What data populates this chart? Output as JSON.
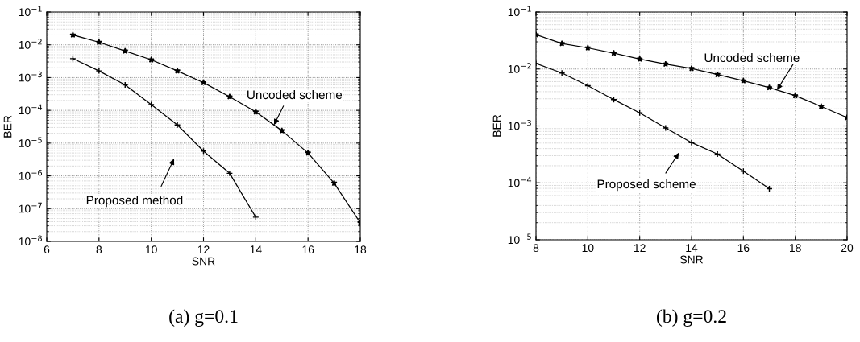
{
  "chart_data": [
    {
      "type": "line",
      "xlabel": "SNR",
      "ylabel": "BER",
      "log": true,
      "grid": true,
      "legend": false,
      "line_style": "solid",
      "xlim": [
        6,
        18
      ],
      "xticks": [
        6,
        8,
        10,
        12,
        14,
        16,
        18
      ],
      "ylim": [
        1e-08,
        0.1
      ],
      "yticks": [
        {
          "value": 1e-08,
          "label": "10$^{−8}$"
        },
        {
          "value": 1e-07,
          "label": "10$^{−7}$"
        },
        {
          "value": 1e-06,
          "label": "10$^{−6}$"
        },
        {
          "value": 1e-05,
          "label": "10$^{−5}$"
        },
        {
          "value": 0.0001,
          "label": "10$^{−4}$"
        },
        {
          "value": 0.001,
          "label": "10$^{−3}$"
        },
        {
          "value": 0.01,
          "label": "10$^{−2}$"
        },
        {
          "value": 0.1,
          "label": "10$^{−1}$"
        }
      ],
      "series": [
        {
          "color": "#000000",
          "marker": "star",
          "x": [
            7,
            8,
            9,
            10,
            11,
            12,
            13,
            14,
            15,
            16,
            17,
            18
          ],
          "values": [
            0.02,
            0.012,
            0.0065,
            0.0035,
            0.0016,
            0.0007,
            0.00026,
            9e-05,
            2.4e-05,
            5e-06,
            6e-07,
            3.7e-08
          ]
        },
        {
          "color": "#000000",
          "marker": "cross",
          "x": [
            7,
            8,
            9,
            10,
            11,
            12,
            13,
            14
          ],
          "values": [
            0.0038,
            0.0016,
            0.0006,
            0.00015,
            3.6e-05,
            5.7e-06,
            1.2e-06,
            5.5e-08
          ]
        }
      ],
      "annotations": [
        {
          "text": "Uncoded scheme",
          "x": 14.7,
          "y": 3.6e-05
        },
        "Proposed method",
        "(a) g=0.1"
      ]
    },
    {
      "type": "line",
      "xlabel": "SNR",
      "ylabel": "BER",
      "log": true,
      "grid": true,
      "legend": false,
      "line_style": "solid",
      "xlim": [
        8,
        20
      ],
      "xticks": [
        8,
        10,
        12,
        14,
        16,
        18,
        20
      ],
      "ylim": [
        1e-05,
        0.1
      ],
      "yticks": [
        {
          "value": 1e-05,
          "label": "10$^{−5}$"
        },
        {
          "value": 0.0001,
          "label": "10$^{−4}$"
        },
        {
          "value": 0.001,
          "label": "10$^{−3}$"
        },
        {
          "value": 0.01,
          "label": "10$^{−2}$"
        },
        {
          "value": 0.1,
          "label": "10$^{−1}$"
        }
      ],
      "series": [
        {
          "color": "#000000",
          "marker": "star",
          "x": [
            8,
            9,
            10,
            11,
            12,
            13,
            14,
            15,
            16,
            17,
            18,
            19,
            20
          ],
          "values": [
            0.04,
            0.028,
            0.0235,
            0.019,
            0.015,
            0.0122,
            0.0102,
            0.008,
            0.0062,
            0.0047,
            0.0034,
            0.0022,
            0.0014
          ]
        },
        {
          "color": "#000000",
          "marker": "cross",
          "x": [
            8,
            9,
            10,
            11,
            12,
            13,
            14,
            15,
            16,
            17
          ],
          "values": [
            0.0125,
            0.0085,
            0.0051,
            0.0029,
            0.0017,
            0.00092,
            0.00051,
            0.00032,
            0.00016,
            7.9e-05
          ]
        }
      ],
      "annotations": [
        {
          "text": "Uncoded scheme",
          "x": 17.3,
          "y": 0.0043
        },
        "Proposed scheme",
        "(b) g=0.2"
      ]
    }
  ]
}
